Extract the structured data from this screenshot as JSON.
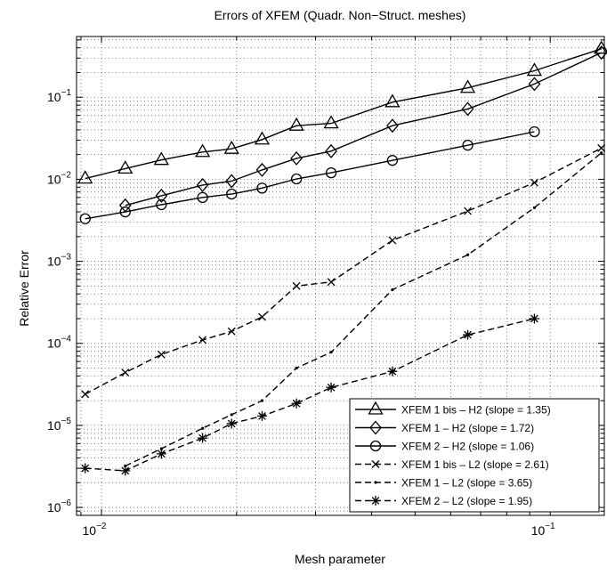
{
  "chart_data": {
    "type": "line",
    "title": "Errors of XFEM (Quadr. Non−Struct. meshes)",
    "xlabel": "Mesh parameter",
    "ylabel": "Relative Error",
    "xscale": "log",
    "yscale": "log",
    "xlim": [
      0.0088,
      0.132
    ],
    "ylim": [
      8e-07,
      0.55
    ],
    "grid": true,
    "legend_position": "bottom-right",
    "xticks": [
      {
        "value": 0.01,
        "base": "10",
        "exp": "−2"
      },
      {
        "value": 0.1,
        "base": "10",
        "exp": "−1"
      }
    ],
    "yticks": [
      {
        "value": 1e-06,
        "base": "10",
        "exp": "−6"
      },
      {
        "value": 1e-05,
        "base": "10",
        "exp": "−5"
      },
      {
        "value": 0.0001,
        "base": "10",
        "exp": "−4"
      },
      {
        "value": 0.001,
        "base": "10",
        "exp": "−3"
      },
      {
        "value": 0.01,
        "base": "10",
        "exp": "−2"
      },
      {
        "value": 0.1,
        "base": "10",
        "exp": "−1"
      }
    ],
    "series": [
      {
        "name": "XFEM 1 bis – H2 (slope = 1.35)",
        "marker": "triangle",
        "dash": "solid",
        "x": [
          0.0092,
          0.0113,
          0.0136,
          0.0168,
          0.0195,
          0.0228,
          0.0272,
          0.0325,
          0.0445,
          0.0655,
          0.0922,
          0.13
        ],
        "y": [
          0.0102,
          0.0135,
          0.0172,
          0.0215,
          0.0235,
          0.0305,
          0.045,
          0.048,
          0.087,
          0.13,
          0.21,
          0.39
        ]
      },
      {
        "name": "XFEM 1 – H2 (slope = 1.72)",
        "marker": "diamond",
        "dash": "solid",
        "x": [
          0.0113,
          0.0136,
          0.0168,
          0.0195,
          0.0228,
          0.0272,
          0.0325,
          0.0445,
          0.0655,
          0.0922,
          0.13
        ],
        "y": [
          0.0048,
          0.0063,
          0.0085,
          0.0095,
          0.013,
          0.018,
          0.022,
          0.045,
          0.072,
          0.145,
          0.35
        ]
      },
      {
        "name": "XFEM 2 – H2 (slope = 1.06)",
        "marker": "circle",
        "dash": "solid",
        "x": [
          0.0092,
          0.0113,
          0.0136,
          0.0168,
          0.0195,
          0.0228,
          0.0272,
          0.0325,
          0.0445,
          0.0655,
          0.0922
        ],
        "y": [
          0.0033,
          0.004,
          0.0049,
          0.006,
          0.0066,
          0.0078,
          0.0101,
          0.012,
          0.017,
          0.026,
          0.038
        ]
      },
      {
        "name": "XFEM 1 bis – L2 (slope = 2.61)",
        "marker": "x",
        "dash": "dashed",
        "x": [
          0.0092,
          0.0113,
          0.0136,
          0.0168,
          0.0195,
          0.0228,
          0.0272,
          0.0325,
          0.0445,
          0.0655,
          0.0922,
          0.13
        ],
        "y": [
          2.4e-05,
          4.4e-05,
          7.3e-05,
          0.00011,
          0.00014,
          0.00021,
          0.0005,
          0.00056,
          0.0018,
          0.0041,
          0.0091,
          0.024
        ]
      },
      {
        "name": "XFEM 1 – L2 (slope = 3.65)",
        "marker": "dot",
        "dash": "dashed",
        "x": [
          0.0113,
          0.0136,
          0.0168,
          0.0195,
          0.0228,
          0.0272,
          0.0325,
          0.0445,
          0.0655,
          0.0922,
          0.13
        ],
        "y": [
          3.2e-06,
          5.2e-06,
          9.2e-06,
          1.35e-05,
          2e-05,
          5e-05,
          7.8e-05,
          0.00045,
          0.0012,
          0.0045,
          0.021
        ]
      },
      {
        "name": "XFEM 2 – L2 (slope = 1.95)",
        "marker": "asterisk",
        "dash": "dashed",
        "x": [
          0.0092,
          0.0113,
          0.0136,
          0.0168,
          0.0195,
          0.0228,
          0.0272,
          0.0325,
          0.0445,
          0.0655,
          0.0922
        ],
        "y": [
          3e-06,
          2.8e-06,
          4.5e-06,
          7e-06,
          1.05e-05,
          1.3e-05,
          1.85e-05,
          2.9e-05,
          4.55e-05,
          0.000127,
          0.0002
        ]
      }
    ]
  }
}
